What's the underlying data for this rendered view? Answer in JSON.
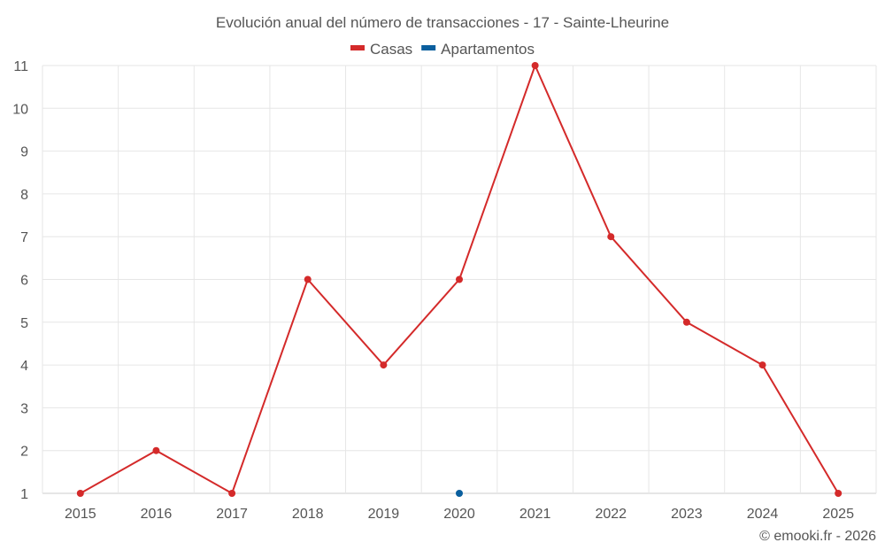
{
  "title": "Evolución anual del número de transacciones - 17 - Sainte-Lheurine",
  "credit": "© emooki.fr - 2026",
  "colors": {
    "casas": "#d42a2a",
    "apartamentos": "#0a5f9e",
    "grid": "#e6e6e6",
    "text": "#555555"
  },
  "chart_data": {
    "type": "line",
    "title": "Evolución anual del número de transacciones - 17 - Sainte-Lheurine",
    "categories": [
      "2015",
      "2016",
      "2017",
      "2018",
      "2019",
      "2020",
      "2021",
      "2022",
      "2023",
      "2024",
      "2025"
    ],
    "ylim": [
      1,
      11
    ],
    "yticks": [
      1,
      2,
      3,
      4,
      5,
      6,
      7,
      8,
      9,
      10,
      11
    ],
    "grid": true,
    "legend_position": "top-center",
    "series": [
      {
        "name": "Casas",
        "color": "#d42a2a",
        "values": [
          1,
          2,
          1,
          6,
          4,
          6,
          11,
          7,
          5,
          4,
          1
        ]
      },
      {
        "name": "Apartamentos",
        "color": "#0a5f9e",
        "values": [
          null,
          null,
          null,
          null,
          null,
          1,
          null,
          null,
          null,
          null,
          null
        ]
      }
    ]
  }
}
